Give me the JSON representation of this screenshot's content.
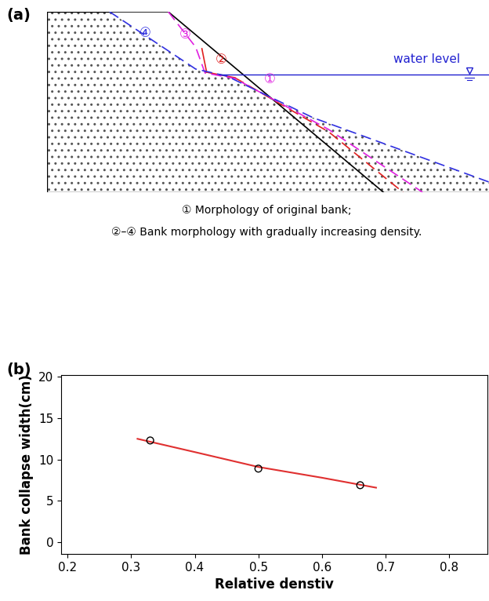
{
  "diagram": {
    "label": "(a)",
    "water_level": "water level",
    "profiles": [
      {
        "label": "①",
        "color": "#e020e0",
        "line_color": "black"
      },
      {
        "label": "②",
        "color": "#e02020",
        "line_color": "#e02020"
      },
      {
        "label": "③",
        "color": "#e020e0",
        "line_color": "#e020e0"
      },
      {
        "label": "④",
        "color": "#3030e0",
        "line_color": "#3030e0"
      }
    ],
    "captions": [
      "① Morphology of original bank;",
      "②–④ Bank morphology with gradually increasing density."
    ]
  },
  "chart_data": {
    "type": "scatter",
    "title": "(b)",
    "x_label": "Relative denstiv",
    "y_label": "Bank collapse width(cm)",
    "series": [
      {
        "type": "scatter",
        "x": [
          0.33,
          0.5,
          0.66
        ],
        "values": [
          12.3,
          8.9,
          6.9
        ],
        "color": "black",
        "marker": "o"
      },
      {
        "type": "line",
        "x": [
          0.31,
          0.4,
          0.5,
          0.6,
          0.685
        ],
        "values": [
          12.5,
          10.9,
          9.1,
          7.8,
          6.6
        ],
        "color": "#e03030",
        "line_style": "solid"
      }
    ],
    "xlim": [
      0.19,
      0.86
    ],
    "xticks": [
      0.2,
      0.3,
      0.4,
      0.5,
      0.6,
      0.7,
      0.8
    ],
    "ylim": [
      -1.4,
      20.2
    ],
    "yticks": [
      0,
      5,
      10,
      15,
      20
    ],
    "grid": false
  }
}
